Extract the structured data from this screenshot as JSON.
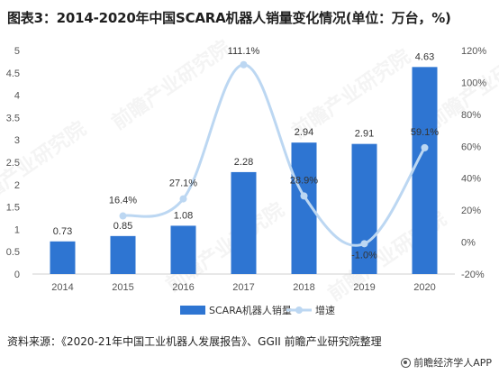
{
  "title": "图表3：2014-2020年中国SCARA机器人销量变化情况(单位：万台，%)",
  "source": "资料来源：《2020-21年中国工业机器人发展报告》、GGII 前瞻产业研究院整理",
  "brand": "前瞻经济学人APP",
  "watermark": "前瞻产业研究院",
  "chart_data": {
    "type": "bar",
    "categories": [
      "2014",
      "2015",
      "2016",
      "2017",
      "2018",
      "2019",
      "2020"
    ],
    "series": [
      {
        "name": "SCARA机器人销量",
        "type": "bar",
        "axis": "left",
        "values": [
          0.73,
          0.85,
          1.08,
          2.28,
          2.94,
          2.91,
          4.63
        ],
        "labels": [
          "0.73",
          "0.85",
          "1.08",
          "2.28",
          "2.94",
          "2.91",
          "4.63"
        ]
      },
      {
        "name": "增速",
        "type": "line",
        "axis": "right",
        "values": [
          null,
          16.4,
          27.1,
          111.1,
          28.9,
          -1.0,
          59.1
        ],
        "labels": [
          "",
          "16.4%",
          "27.1%",
          "111.1%",
          "28.9%",
          "-1.0%",
          "59.1%"
        ]
      }
    ],
    "left_axis": {
      "ylim": [
        0,
        5
      ],
      "ticks": [
        "0",
        "0.5",
        "1",
        "1.5",
        "2",
        "2.5",
        "3",
        "3.5",
        "4",
        "4.5",
        "5"
      ]
    },
    "right_axis": {
      "ylim": [
        -20,
        120
      ],
      "ticks": [
        "-20%",
        "0%",
        "20%",
        "40%",
        "60%",
        "80%",
        "100%",
        "120%"
      ]
    },
    "legend_position": "bottom",
    "colors": {
      "bar": "#2e75d2",
      "line": "#bcd7f2",
      "axis_text": "#555555",
      "axis_line": "#d0d0d0"
    }
  }
}
